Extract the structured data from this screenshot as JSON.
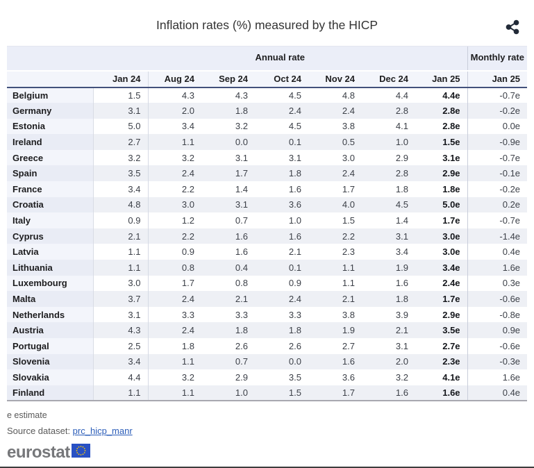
{
  "page": {
    "title": "Inflation rates (%) measured by the HICP"
  },
  "icons": {
    "share": "share-icon",
    "eu_flag": "eu-flag-icon"
  },
  "colors": {
    "header_bg": "#ebeef8",
    "month_row_bg": "#f3f5fb",
    "stripe_bg": "#eef0f5",
    "header_border": "#42517b",
    "table_bottom_border": "#a8a8b0",
    "link_blue": "#2a5cb8",
    "logo_gray": "#76777a",
    "flag_blue": "#2850c4",
    "star_yellow": "#ffcc00",
    "share_icon": "#222b38"
  },
  "table": {
    "group_headers": {
      "annual": "Annual rate",
      "monthly": "Monthly rate"
    },
    "annual_columns": [
      "Jan 24",
      "Aug 24",
      "Sep 24",
      "Oct 24",
      "Nov 24",
      "Dec 24"
    ],
    "annual_jan25_column": "Jan 25",
    "monthly_column": "Jan 25",
    "rows": [
      {
        "country": "Belgium",
        "values": [
          "1.5",
          "4.3",
          "4.3",
          "4.5",
          "4.8",
          "4.4"
        ],
        "jan25": "4.4e",
        "monthly": "-0.7e"
      },
      {
        "country": "Germany",
        "values": [
          "3.1",
          "2.0",
          "1.8",
          "2.4",
          "2.4",
          "2.8"
        ],
        "jan25": "2.8e",
        "monthly": "-0.2e"
      },
      {
        "country": "Estonia",
        "values": [
          "5.0",
          "3.4",
          "3.2",
          "4.5",
          "3.8",
          "4.1"
        ],
        "jan25": "2.8e",
        "monthly": "0.0e"
      },
      {
        "country": "Ireland",
        "values": [
          "2.7",
          "1.1",
          "0.0",
          "0.1",
          "0.5",
          "1.0"
        ],
        "jan25": "1.5e",
        "monthly": "-0.9e"
      },
      {
        "country": "Greece",
        "values": [
          "3.2",
          "3.2",
          "3.1",
          "3.1",
          "3.0",
          "2.9"
        ],
        "jan25": "3.1e",
        "monthly": "-0.7e"
      },
      {
        "country": "Spain",
        "values": [
          "3.5",
          "2.4",
          "1.7",
          "1.8",
          "2.4",
          "2.8"
        ],
        "jan25": "2.9e",
        "monthly": "-0.1e"
      },
      {
        "country": "France",
        "values": [
          "3.4",
          "2.2",
          "1.4",
          "1.6",
          "1.7",
          "1.8"
        ],
        "jan25": "1.8e",
        "monthly": "-0.2e"
      },
      {
        "country": "Croatia",
        "values": [
          "4.8",
          "3.0",
          "3.1",
          "3.6",
          "4.0",
          "4.5"
        ],
        "jan25": "5.0e",
        "monthly": "0.2e"
      },
      {
        "country": "Italy",
        "values": [
          "0.9",
          "1.2",
          "0.7",
          "1.0",
          "1.5",
          "1.4"
        ],
        "jan25": "1.7e",
        "monthly": "-0.7e"
      },
      {
        "country": "Cyprus",
        "values": [
          "2.1",
          "2.2",
          "1.6",
          "1.6",
          "2.2",
          "3.1"
        ],
        "jan25": "3.0e",
        "monthly": "-1.4e"
      },
      {
        "country": "Latvia",
        "values": [
          "1.1",
          "0.9",
          "1.6",
          "2.1",
          "2.3",
          "3.4"
        ],
        "jan25": "3.0e",
        "monthly": "0.4e"
      },
      {
        "country": "Lithuania",
        "values": [
          "1.1",
          "0.8",
          "0.4",
          "0.1",
          "1.1",
          "1.9"
        ],
        "jan25": "3.4e",
        "monthly": "1.6e"
      },
      {
        "country": "Luxembourg",
        "values": [
          "3.0",
          "1.7",
          "0.8",
          "0.9",
          "1.1",
          "1.6"
        ],
        "jan25": "2.4e",
        "monthly": "0.3e"
      },
      {
        "country": "Malta",
        "values": [
          "3.7",
          "2.4",
          "2.1",
          "2.4",
          "2.1",
          "1.8"
        ],
        "jan25": "1.7e",
        "monthly": "-0.6e"
      },
      {
        "country": "Netherlands",
        "values": [
          "3.1",
          "3.3",
          "3.3",
          "3.3",
          "3.8",
          "3.9"
        ],
        "jan25": "2.9e",
        "monthly": "-0.8e"
      },
      {
        "country": "Austria",
        "values": [
          "4.3",
          "2.4",
          "1.8",
          "1.8",
          "1.9",
          "2.1"
        ],
        "jan25": "3.5e",
        "monthly": "0.9e"
      },
      {
        "country": "Portugal",
        "values": [
          "2.5",
          "1.8",
          "2.6",
          "2.6",
          "2.7",
          "3.1"
        ],
        "jan25": "2.7e",
        "monthly": "-0.6e"
      },
      {
        "country": "Slovenia",
        "values": [
          "3.4",
          "1.1",
          "0.7",
          "0.0",
          "1.6",
          "2.0"
        ],
        "jan25": "2.3e",
        "monthly": "-0.3e"
      },
      {
        "country": "Slovakia",
        "values": [
          "4.4",
          "3.2",
          "2.9",
          "3.5",
          "3.6",
          "3.2"
        ],
        "jan25": "4.1e",
        "monthly": "1.6e"
      },
      {
        "country": "Finland",
        "values": [
          "1.1",
          "1.1",
          "1.0",
          "1.5",
          "1.7",
          "1.6"
        ],
        "jan25": "1.6e",
        "monthly": "0.4e"
      }
    ]
  },
  "footer": {
    "estimate_note": "e estimate",
    "source_label": "Source dataset: ",
    "source_link": "prc_hicp_manr",
    "logo_text": "eurostat"
  }
}
